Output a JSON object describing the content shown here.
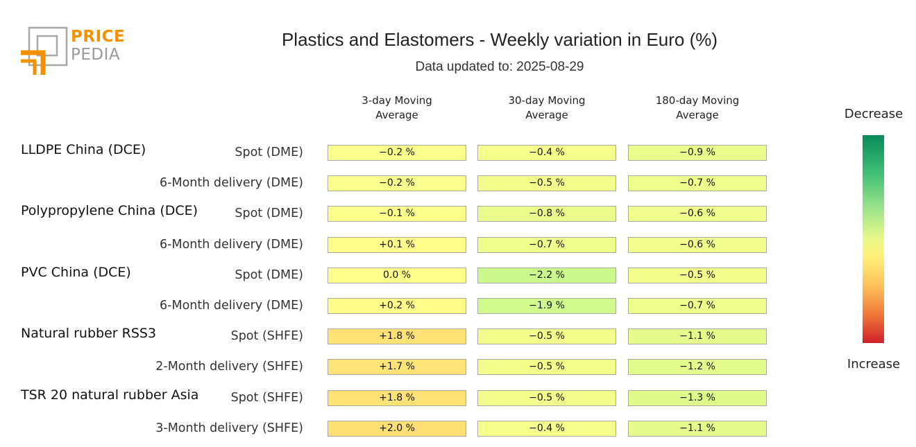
{
  "brand": {
    "line1": "PRICE",
    "line2": "PEDIA"
  },
  "title": "Plastics and Elastomers - Weekly variation in Euro (%)",
  "subtitle": "Data updated to: 2025-08-29",
  "legend": {
    "top": "Decrease",
    "bottom": "Increase"
  },
  "chart_data": {
    "type": "table",
    "columns": [
      {
        "line1": "3-day Moving",
        "line2": "Average"
      },
      {
        "line1": "30-day Moving",
        "line2": "Average"
      },
      {
        "line1": "180-day Moving",
        "line2": "Average"
      }
    ],
    "unit": "%",
    "groups": [
      {
        "name": "LLDPE China (DCE)",
        "rows": [
          {
            "label": "Spot (DME)",
            "values": [
              -0.2,
              -0.4,
              -0.9
            ],
            "text": [
              "-0.2 %",
              "-0.4 %",
              "-0.9 %"
            ]
          },
          {
            "label": "6-Month delivery (DME)",
            "values": [
              -0.2,
              -0.5,
              -0.7
            ],
            "text": [
              "-0.2 %",
              "-0.5 %",
              "-0.7 %"
            ]
          }
        ]
      },
      {
        "name": "Polypropylene China (DCE)",
        "rows": [
          {
            "label": "Spot (DME)",
            "values": [
              -0.1,
              -0.8,
              -0.6
            ],
            "text": [
              "-0.1 %",
              "-0.8 %",
              "-0.6 %"
            ]
          },
          {
            "label": "6-Month delivery (DME)",
            "values": [
              0.1,
              -0.7,
              -0.6
            ],
            "text": [
              "+0.1 %",
              "-0.7 %",
              "-0.6 %"
            ]
          }
        ]
      },
      {
        "name": "PVC China (DCE)",
        "rows": [
          {
            "label": "Spot (DME)",
            "values": [
              0.0,
              -2.2,
              -0.5
            ],
            "text": [
              "0.0 %",
              "-2.2 %",
              "-0.5 %"
            ]
          },
          {
            "label": "6-Month delivery (DME)",
            "values": [
              0.2,
              -1.9,
              -0.7
            ],
            "text": [
              "+0.2 %",
              "-1.9 %",
              "-0.7 %"
            ]
          }
        ]
      },
      {
        "name": "Natural rubber RSS3",
        "rows": [
          {
            "label": "Spot (SHFE)",
            "values": [
              1.8,
              -0.5,
              -1.1
            ],
            "text": [
              "+1.8 %",
              "-0.5 %",
              "-1.1 %"
            ]
          },
          {
            "label": "2-Month delivery (SHFE)",
            "values": [
              1.7,
              -0.5,
              -1.2
            ],
            "text": [
              "+1.7 %",
              "-0.5 %",
              "-1.2 %"
            ]
          }
        ]
      },
      {
        "name": "TSR 20 natural rubber Asia",
        "rows": [
          {
            "label": "Spot (SHFE)",
            "values": [
              1.8,
              -0.5,
              -1.3
            ],
            "text": [
              "+1.8 %",
              "-0.5 %",
              "-1.3 %"
            ]
          },
          {
            "label": "3-Month delivery (SHFE)",
            "values": [
              2.0,
              -0.4,
              -1.1
            ],
            "text": [
              "+2.0 %",
              "-0.4 %",
              "-1.1 %"
            ]
          }
        ]
      }
    ]
  }
}
